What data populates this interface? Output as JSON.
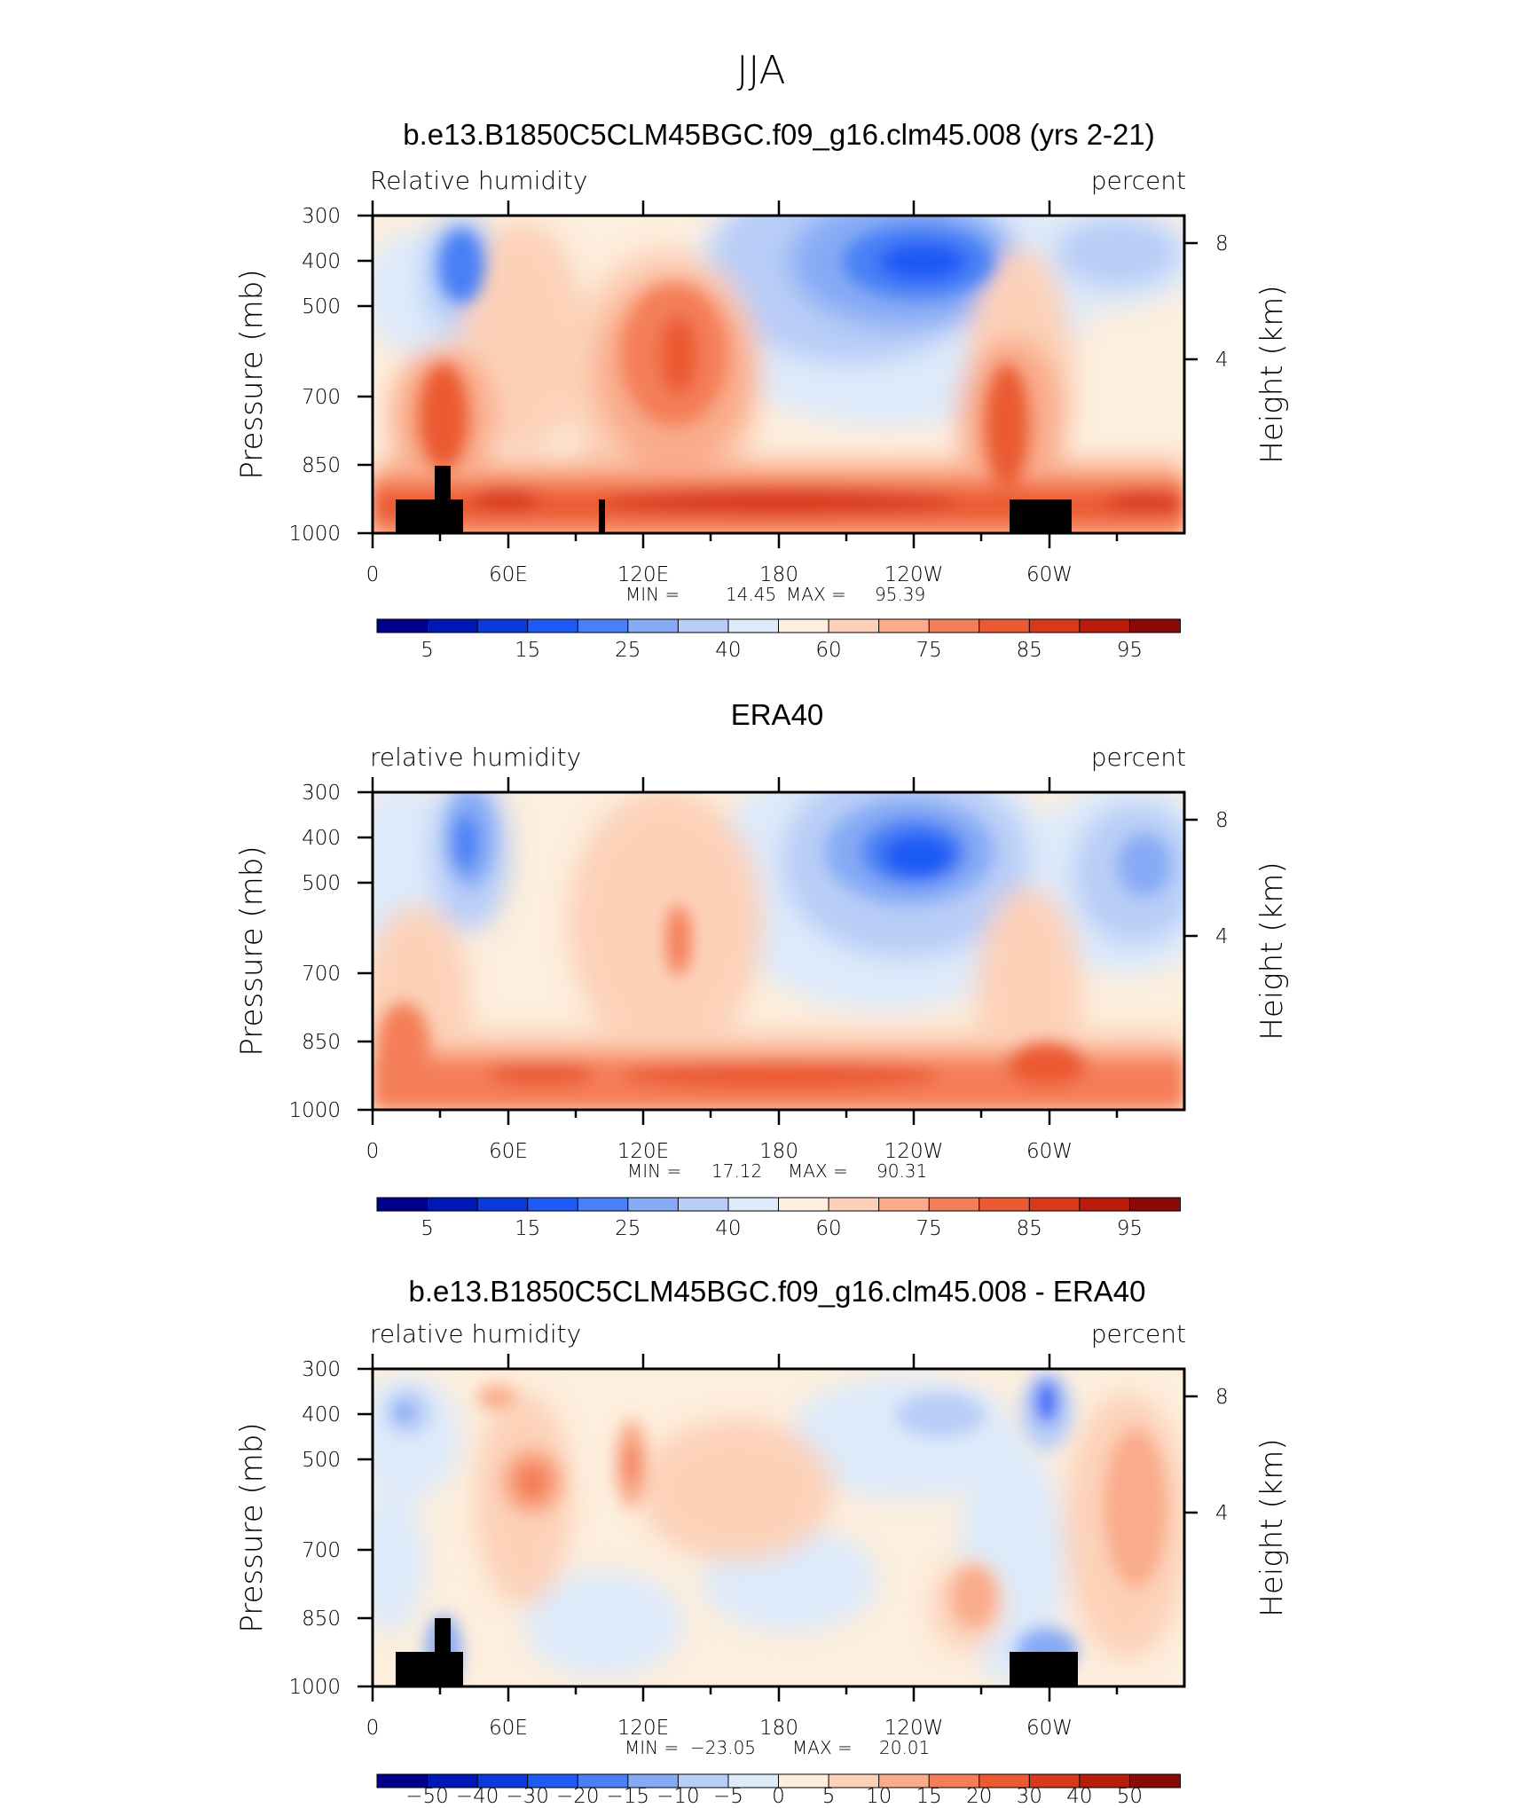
{
  "figure_title": "JJA",
  "chart_data": [
    {
      "type": "contour",
      "title": "b.e13.B1850C5CLM45BGC.f09_g16.clm45.008 (yrs 2-21)",
      "left_label": "Relative humidity",
      "right_label": "percent",
      "ylabel": "Pressure (mb)",
      "y2label": "Height (km)",
      "x_ticks": [
        "0",
        "60E",
        "120E",
        "180",
        "120W",
        "60W"
      ],
      "y_ticks": [
        "300",
        "400",
        "500",
        "700",
        "850",
        "1000"
      ],
      "y2_ticks": [
        "8",
        "4"
      ],
      "stats": {
        "min_label": "MIN =",
        "min": "14.45",
        "max_label": "MAX =",
        "max": "95.39"
      },
      "colorbar_labels": [
        "5",
        "15",
        "25",
        "40",
        "60",
        "75",
        "85",
        "95"
      ],
      "terrain": true
    },
    {
      "type": "contour",
      "title": "ERA40",
      "left_label": "relative humidity",
      "right_label": "percent",
      "ylabel": "Pressure (mb)",
      "y2label": "Height (km)",
      "x_ticks": [
        "0",
        "60E",
        "120E",
        "180",
        "120W",
        "60W"
      ],
      "y_ticks": [
        "300",
        "400",
        "500",
        "700",
        "850",
        "1000"
      ],
      "y2_ticks": [
        "8",
        "4"
      ],
      "stats": {
        "min_label": "MIN =",
        "min": "17.12",
        "max_label": "MAX =",
        "max": "90.31"
      },
      "colorbar_labels": [
        "5",
        "15",
        "25",
        "40",
        "60",
        "75",
        "85",
        "95"
      ],
      "terrain": false
    },
    {
      "type": "contour",
      "title": "b.e13.B1850C5CLM45BGC.f09_g16.clm45.008 - ERA40",
      "left_label": "relative humidity",
      "right_label": "percent",
      "ylabel": "Pressure (mb)",
      "y2label": "Height (km)",
      "x_ticks": [
        "0",
        "60E",
        "120E",
        "180",
        "120W",
        "60W"
      ],
      "y_ticks": [
        "300",
        "400",
        "500",
        "700",
        "850",
        "1000"
      ],
      "y2_ticks": [
        "8",
        "4"
      ],
      "stats": {
        "min_label": "MIN =",
        "min": "−23.05",
        "max_label": "MAX =",
        "max": "20.01"
      },
      "colorbar_labels": [
        "−50",
        "−40",
        "−30",
        "−20",
        "−15",
        "−10",
        "−5",
        "0",
        "5",
        "10",
        "15",
        "20",
        "30",
        "40",
        "50"
      ],
      "terrain": true
    }
  ],
  "colors": {
    "colorbar": [
      "#00008c",
      "#0018b8",
      "#0a3adc",
      "#1e5af5",
      "#4a80f5",
      "#86aaf5",
      "#b8cdf7",
      "#ddeafa",
      "#fdeedd",
      "#fcd1b8",
      "#f9ab8a",
      "#f47e58",
      "#eb5a30",
      "#d8391a",
      "#b81d0c",
      "#8a0a08"
    ],
    "terrain": "#000000"
  }
}
